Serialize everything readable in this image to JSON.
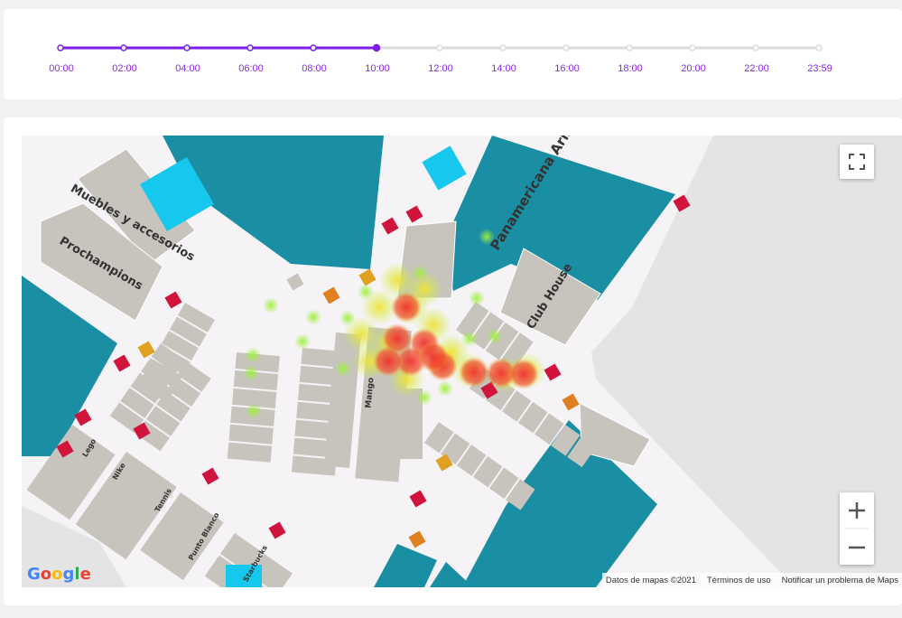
{
  "timeline": {
    "labels": [
      "00:00",
      "02:00",
      "04:00",
      "06:00",
      "08:00",
      "10:00",
      "12:00",
      "14:00",
      "16:00",
      "18:00",
      "20:00",
      "22:00",
      "23:59"
    ],
    "selected": "10:00"
  },
  "map": {
    "stores": [
      "Panamericana Aristas",
      "Club House",
      "Muebles y accesorios",
      "Prochampions",
      "Mango",
      "Nike",
      "Tennis",
      "Punto Blanco",
      "Starbucks",
      "Lego"
    ],
    "attribution": "Google",
    "footer": [
      "Datos de mapas ©2021",
      "Términos de uso",
      "Notificar un problema de Maps"
    ]
  }
}
